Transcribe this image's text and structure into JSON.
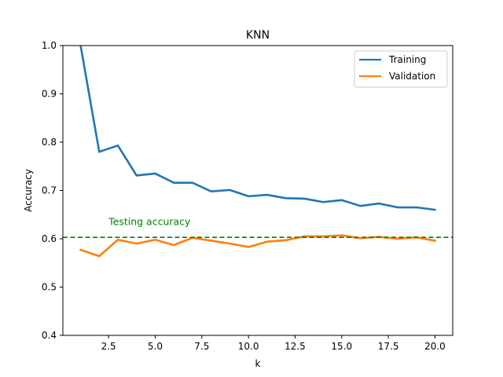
{
  "chart_data": {
    "type": "line",
    "title": "KNN",
    "xlabel": "k",
    "ylabel": "Accuracy",
    "xlim": [
      0.05,
      20.95
    ],
    "ylim": [
      0.4,
      1.0
    ],
    "xticks": [
      2.5,
      5.0,
      7.5,
      10.0,
      12.5,
      15.0,
      17.5,
      20.0
    ],
    "xtick_labels": [
      "2.5",
      "5.0",
      "7.5",
      "10.0",
      "12.5",
      "15.0",
      "17.5",
      "20.0"
    ],
    "yticks": [
      0.4,
      0.5,
      0.6,
      0.7,
      0.8,
      0.9,
      1.0
    ],
    "ytick_labels": [
      "0.4",
      "0.5",
      "0.6",
      "0.7",
      "0.8",
      "0.9",
      "1.0"
    ],
    "grid": false,
    "legend_position": "top-right",
    "x": [
      1,
      2,
      3,
      4,
      5,
      6,
      7,
      8,
      9,
      10,
      11,
      12,
      13,
      14,
      15,
      16,
      17,
      18,
      19,
      20
    ],
    "series": [
      {
        "name": "Training",
        "color": "#1f77b4",
        "values": [
          1.0,
          0.78,
          0.793,
          0.731,
          0.735,
          0.716,
          0.716,
          0.698,
          0.701,
          0.688,
          0.691,
          0.684,
          0.683,
          0.676,
          0.68,
          0.668,
          0.673,
          0.665,
          0.665,
          0.66
        ]
      },
      {
        "name": "Validation",
        "color": "#ff7f0e",
        "values": [
          0.577,
          0.564,
          0.598,
          0.59,
          0.598,
          0.587,
          0.602,
          0.596,
          0.59,
          0.583,
          0.594,
          0.597,
          0.605,
          0.605,
          0.607,
          0.601,
          0.604,
          0.6,
          0.603,
          0.596
        ]
      }
    ],
    "reference_line": {
      "value": 0.603,
      "color": "#008000",
      "style": "dashed",
      "label": "Testing accuracy",
      "label_x": 2.5,
      "label_y": 0.635
    }
  }
}
